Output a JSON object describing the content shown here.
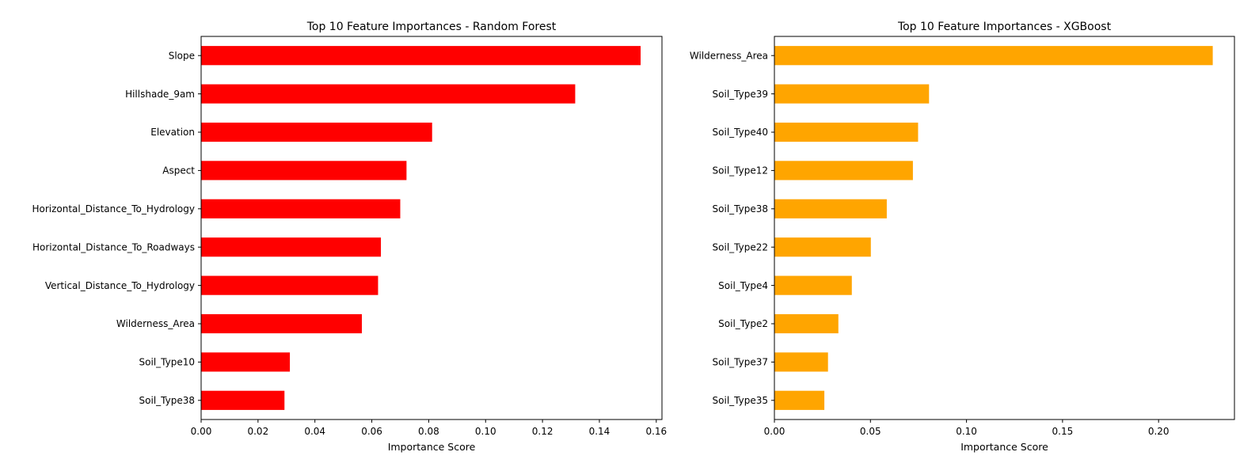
{
  "chart_data": [
    {
      "type": "bar",
      "orientation": "horizontal",
      "title": "Top 10 Feature Importances - Random Forest",
      "xlabel": "Importance Score",
      "ylabel": "",
      "color": "#ff0000",
      "xlim": [
        0,
        0.162
      ],
      "xticks": [
        0.0,
        0.02,
        0.04,
        0.06,
        0.08,
        0.1,
        0.12,
        0.14,
        0.16
      ],
      "xtick_labels": [
        "0.00",
        "0.02",
        "0.04",
        "0.06",
        "0.08",
        "0.10",
        "0.12",
        "0.14",
        "0.16"
      ],
      "grid": false,
      "categories": [
        "Slope",
        "Hillshade_9am",
        "Elevation",
        "Aspect",
        "Horizontal_Distance_To_Hydrology",
        "Horizontal_Distance_To_Roadways",
        "Vertical_Distance_To_Hydrology",
        "Wilderness_Area",
        "Soil_Type10",
        "Soil_Type38"
      ],
      "values": [
        0.1545,
        0.1315,
        0.0812,
        0.0722,
        0.07,
        0.0632,
        0.0622,
        0.0565,
        0.0312,
        0.0293
      ]
    },
    {
      "type": "bar",
      "orientation": "horizontal",
      "title": "Top 10 Feature Importances - XGBoost",
      "xlabel": "Importance Score",
      "ylabel": "",
      "color": "#ffa500",
      "xlim": [
        0,
        0.2395
      ],
      "xticks": [
        0.0,
        0.05,
        0.1,
        0.15,
        0.2
      ],
      "xtick_labels": [
        "0.00",
        "0.05",
        "0.10",
        "0.15",
        "0.20"
      ],
      "grid": false,
      "categories": [
        "Wilderness_Area",
        "Soil_Type39",
        "Soil_Type40",
        "Soil_Type12",
        "Soil_Type38",
        "Soil_Type22",
        "Soil_Type4",
        "Soil_Type2",
        "Soil_Type37",
        "Soil_Type35"
      ],
      "values": [
        0.2282,
        0.0805,
        0.0748,
        0.0721,
        0.0585,
        0.0502,
        0.0403,
        0.0333,
        0.0279,
        0.026
      ]
    }
  ]
}
